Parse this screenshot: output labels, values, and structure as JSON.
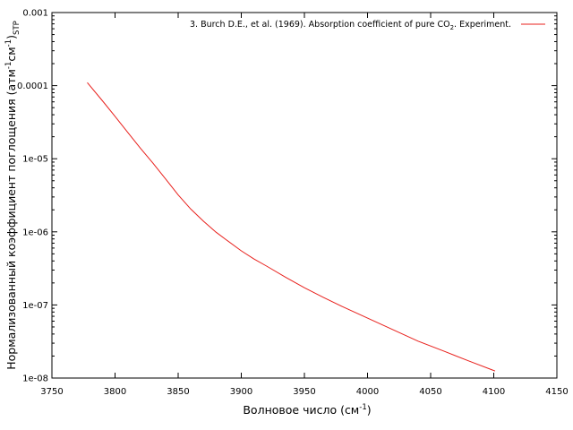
{
  "chart_data": {
    "type": "line",
    "xlabel_main": "Волновое число (см",
    "xlabel_sup": "-1",
    "xlabel_end": ")",
    "ylabel_main": "Нормализованный коэффициент поглощения (атм",
    "ylabel_sup1": "-1",
    "ylabel_mid": "см",
    "ylabel_sup2": "-1",
    "ylabel_end": ")",
    "ylabel_sub": "STP",
    "xlim": [
      3750,
      4150
    ],
    "ylim": [
      1e-08,
      0.001
    ],
    "y_scale": "log",
    "x_ticks": [
      3750,
      3800,
      3850,
      3900,
      3950,
      4000,
      4050,
      4100,
      4150
    ],
    "x_tick_labels": [
      "3750",
      "3800",
      "3850",
      "3900",
      "3950",
      "4000",
      "4050",
      "4100",
      "4150"
    ],
    "y_ticks": [
      1e-08,
      1e-07,
      1e-06,
      1e-05,
      0.0001,
      0.001
    ],
    "y_tick_labels": [
      "1e-08",
      "1e-07",
      "1e-06",
      "1e-05",
      "0.0001",
      "0.001"
    ],
    "grid": false,
    "legend_position": "top-right",
    "legend_label_pre": "3. Burch D.E., et al. (1969). Absorption coefficient of pure CO",
    "legend_label_sub": "2",
    "legend_label_post": ". Experiment.",
    "series": [
      {
        "color": "#e8201c",
        "x": [
          3778,
          3790,
          3800,
          3810,
          3820,
          3830,
          3840,
          3850,
          3860,
          3870,
          3880,
          3888,
          3900,
          3910,
          3920,
          3935,
          3950,
          3965,
          3980,
          4000,
          4020,
          4040,
          4060,
          4080,
          4101
        ],
        "y": [
          0.00011,
          6.2e-05,
          3.8e-05,
          2.3e-05,
          1.4e-05,
          8.7e-06,
          5.3e-06,
          3.2e-06,
          2.05e-06,
          1.4e-06,
          9.9e-07,
          7.8e-07,
          5.5e-07,
          4.25e-07,
          3.4e-07,
          2.4e-07,
          1.72e-07,
          1.27e-07,
          9.5e-08,
          6.6e-08,
          4.6e-08,
          3.2e-08,
          2.35e-08,
          1.72e-08,
          1.25e-08
        ]
      }
    ]
  }
}
